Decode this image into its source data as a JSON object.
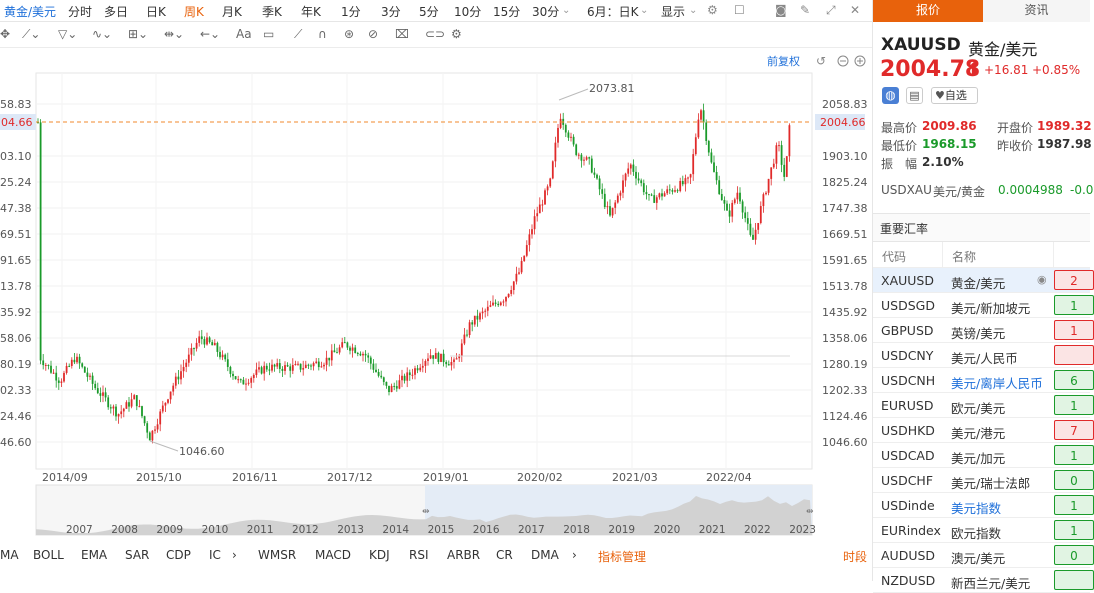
{
  "topbar": {
    "symbol": "黄金/美元",
    "periods": [
      "分时",
      "多日",
      "日K",
      "周K",
      "月K",
      "季K",
      "年K",
      "1分",
      "3分",
      "5分",
      "10分",
      "15分",
      "30分"
    ],
    "active_period": "周K",
    "range": "6月：日K",
    "display": "显示"
  },
  "toolbar": {
    "font_tool": "Aa"
  },
  "chart": {
    "adjust_label": "前复权",
    "current_price": "2004.66",
    "y_ticks": [
      "2058.83",
      "1903.10",
      "1825.24",
      "1747.38",
      "1669.51",
      "1591.65",
      "1513.78",
      "1435.92",
      "1358.06",
      "1280.19",
      "1202.33",
      "1124.46",
      "1046.60"
    ],
    "y_ticks_left": [
      "58.83",
      "04.66",
      "03.10",
      "25.24",
      "47.38",
      "69.51",
      "91.65",
      "13.78",
      "35.92",
      "58.06",
      "80.19",
      "02.33",
      "24.46",
      "46.60"
    ],
    "high_label": "2073.81",
    "low_label": "1046.60",
    "x_labels": [
      "2014/09",
      "2015/10",
      "2016/11",
      "2017/12",
      "2019/01",
      "2020/02",
      "2021/03",
      "2022/04"
    ],
    "nav_years": [
      "2007",
      "2008",
      "2009",
      "2010",
      "2011",
      "2012",
      "2013",
      "2014",
      "2015",
      "2016",
      "2017",
      "2018",
      "2019",
      "2020",
      "2021",
      "2022",
      "2023"
    ]
  },
  "indicators": {
    "items": [
      "MA",
      "BOLL",
      "EMA",
      "SAR",
      "CDP",
      "IC",
      "WMSR",
      "MACD",
      "KDJ",
      "RSI",
      "ARBR",
      "CR",
      "DMA"
    ],
    "manage": "指标管理",
    "share": "时段"
  },
  "panel": {
    "tabs": [
      "报价",
      "资讯"
    ],
    "code": "XAUUSD",
    "name": "黄金/美元",
    "price": "2004.78",
    "arrow": "⬆",
    "change": "+16.81",
    "change_pct": "+0.85%",
    "watch": "自选",
    "stats": [
      {
        "label": "最高价",
        "value": "2009.86",
        "color": "#e02a2a"
      },
      {
        "label": "开盘价",
        "value": "1989.32",
        "color": "#e02a2a"
      },
      {
        "label": "最低价",
        "value": "1968.15",
        "color": "#1a9a2a"
      },
      {
        "label": "昨收价",
        "value": "1987.98",
        "color": "#333333"
      },
      {
        "label": "振　幅",
        "value": "2.10%",
        "color": "#333333"
      }
    ],
    "usdxau": {
      "code": "USDXAU",
      "name": "美元/黄金",
      "value": "0.0004988",
      "chg": "-0.0"
    },
    "rates_title": "重要汇率",
    "col_code": "代码",
    "col_name": "名称",
    "rates": [
      {
        "code": "XAUUSD",
        "name": "黄金/美元",
        "chg": "2",
        "dir": "up"
      },
      {
        "code": "USDSGD",
        "name": "美元/新加坡元",
        "chg": "1",
        "dir": "down"
      },
      {
        "code": "GBPUSD",
        "name": "英镑/美元",
        "chg": "1",
        "dir": "up"
      },
      {
        "code": "USDCNY",
        "name": "美元/人民币",
        "chg": "",
        "dir": "up"
      },
      {
        "code": "USDCNH",
        "name": "美元/离岸人民币",
        "chg": "6",
        "dir": "down"
      },
      {
        "code": "EURUSD",
        "name": "欧元/美元",
        "chg": "1",
        "dir": "down"
      },
      {
        "code": "USDHKD",
        "name": "美元/港元",
        "chg": "7",
        "dir": "up"
      },
      {
        "code": "USDCAD",
        "name": "美元/加元",
        "chg": "1",
        "dir": "down"
      },
      {
        "code": "USDCHF",
        "name": "美元/瑞士法郎",
        "chg": "0",
        "dir": "down"
      },
      {
        "code": "USDinde",
        "name": "美元指数",
        "chg": "1",
        "dir": "down"
      },
      {
        "code": "EURindex",
        "name": "欧元指数",
        "chg": "1",
        "dir": "down"
      },
      {
        "code": "AUDUSD",
        "name": "澳元/美元",
        "chg": "0",
        "dir": "down"
      },
      {
        "code": "NZDUSD",
        "name": "新西兰元/美元",
        "chg": "",
        "dir": "down"
      }
    ],
    "colors": {
      "up": "#e02a2a",
      "down": "#1a9a2a",
      "accent": "#1e6fd9"
    }
  }
}
